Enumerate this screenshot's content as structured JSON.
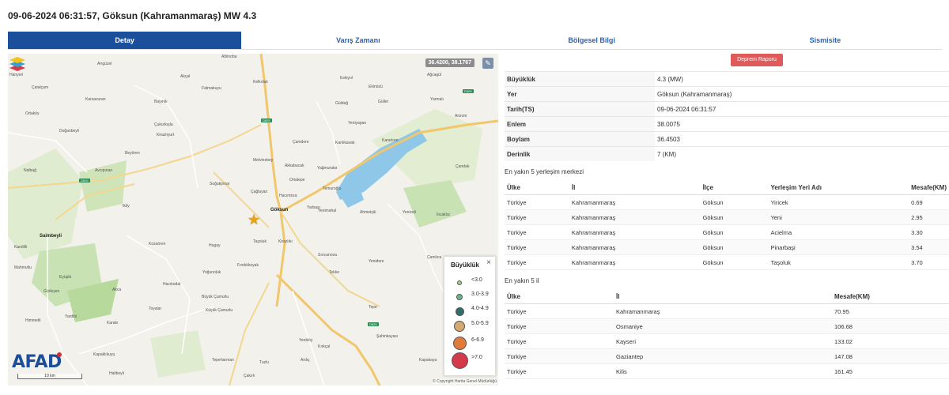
{
  "header": {
    "title": "09-06-2024 06:31:57, Göksun (Kahramanmaraş) MW 4.3"
  },
  "tabs": [
    {
      "label": "Detay",
      "active": true
    },
    {
      "label": "Varış Zamanı"
    },
    {
      "label": "Bölgesel Bilgi"
    },
    {
      "label": "Sismisite"
    }
  ],
  "map": {
    "coordinates": "36.4200, 38.1767",
    "brand": "AFAD",
    "scale_label": "10 km",
    "copyright": "© Copyright Harita Genel Müdürlüğü",
    "labels": {
      "hanyeri": "Hanyeri",
      "catalcam": "Çatalçam",
      "karsavuran": "Karsavuran",
      "ortakoy": "Ortaköy",
      "doganbeyli": "Doğanbeyli",
      "nalbag": "Nalbağ",
      "avciplinari": "Avcıpınarı",
      "ikily": "Ikily",
      "saimbeyli": "Saimbeyli",
      "kandilli": "Kandilli",
      "mahmutlu": "Mahmutlu",
      "eyupl": "Eyüplü",
      "gurleyen": "Gürleyen",
      "himmetli": "Himmetli",
      "yardibi": "Yardibi",
      "karaki": "Karakı",
      "kapaklikuyu": "Kapaklıkuyu",
      "halibeyli": "Halibeyli",
      "ariguzel": "Arıgüzel",
      "akcal": "Akçal",
      "fatmakuyu": "Fatmakuyu",
      "bayirlik": "Bayırlık",
      "cukurkisla": "Çukurkışla",
      "kiralyurt": "Kirazlıyurt",
      "beyoren": "Beyören",
      "sogukpinar": "Soğukpınar",
      "kozaoren": "Kozaören",
      "hugay": "Hugay",
      "yogunoluk": "Yoğunoluk",
      "hacikodal": "Hacıkodal",
      "akca": "Akca",
      "toyalar": "Toyalar",
      "buyukcamurlu": "Büyük Çamurlu",
      "kucukcamurlu": "Küçük Çamurlu",
      "albinoba": "Albinoba",
      "kelkoluk": "Kelkoluk",
      "tasoluk": "Taşoluk",
      "kirazlik": "Kirazlıkı",
      "findikkoyak": "Fındıkkoyak",
      "melvinebey": "Melvinebey",
      "cagalayan": "Çağlayan",
      "hacimirza": "Hacımirza",
      "goksun": "Göksun",
      "yarbasi": "Yarbaşı",
      "ortatepe": "Ortatepe",
      "temurogu": "Temuroğlu",
      "yenimahal": "Yenimahal",
      "ahmetcik": "Ahmetçik",
      "surucanva": "Sırıcanova",
      "camdere": "Çamdere",
      "kanlikavak": "Kanlıkavak",
      "akkabucak": "Akkabucak",
      "yagmuralar": "Yağmuralar",
      "yeniyapan": "Yeniyapan",
      "guldag": "Güldağ",
      "guller": "Güller",
      "eskiyol": "Eskiyol",
      "ekinozu": "Ekinözü",
      "karaoren": "Karaören",
      "yeniceli": "Yeniceli",
      "ilicakoz": "Ilıcaköz",
      "arizoni": "Arizoni",
      "camlica": "Çamlıca",
      "yenidere": "Yenidere",
      "tepe": "Tepe",
      "sahinkayasi": "Şahinkayası",
      "kapakaya": "Kapakaya",
      "agcagul": "Ağcagül",
      "yarmaly": "Yarmalı",
      "candak": "Çandak",
      "tekke": "Tekke",
      "yenikoy": "Yeniköy",
      "kirkcal": "Kırkçal",
      "ardic": "Ardıç",
      "tepeharman": "Tepeharman",
      "cakirli": "Çakırlı",
      "tuzlu": "Tuzlu"
    },
    "road_signs": {
      "d815": "D815",
      "d825a": "D825",
      "d825b": "D825",
      "d300": "D300"
    }
  },
  "legend": {
    "title": "Büyüklük",
    "items": [
      {
        "label": "<3.0",
        "color": "#9bd08a"
      },
      {
        "label": "3.0-3.9",
        "color": "#6cb48a"
      },
      {
        "label": "4.0-4.9",
        "color": "#2f6d6a"
      },
      {
        "label": "5.0-5.9",
        "color": "#d4a873"
      },
      {
        "label": "6-6.9",
        "color": "#e07b3a"
      },
      {
        "label": ">7.0",
        "color": "#d33a4a"
      }
    ]
  },
  "report_button": "Deprem Raporu",
  "details": [
    {
      "label": "Büyüklük",
      "value": "4.3 (MW)"
    },
    {
      "label": "Yer",
      "value": "Göksun (Kahramanmaraş)"
    },
    {
      "label": "Tarih(TS)",
      "value": "09-06-2024 06:31:57"
    },
    {
      "label": "Enlem",
      "value": "38.0075"
    },
    {
      "label": "Boylam",
      "value": "36.4503"
    },
    {
      "label": "Derinlik",
      "value": "7 (KM)"
    }
  ],
  "settlements": {
    "title": "En yakın 5 yerleşim merkezi",
    "headers": [
      "Ülke",
      "İl",
      "İlçe",
      "Yerleşim Yeri Adı",
      "Mesafe(KM)"
    ],
    "rows": [
      [
        "Türkiye",
        "Kahramanmaraş",
        "Göksun",
        "Yiricek",
        "0.69"
      ],
      [
        "Türkiye",
        "Kahramanmaraş",
        "Göksun",
        "Yeni",
        "2.95"
      ],
      [
        "Türkiye",
        "Kahramanmaraş",
        "Göksun",
        "Acielma",
        "3.30"
      ],
      [
        "Türkiye",
        "Kahramanmaraş",
        "Göksun",
        "Pinarbaşi",
        "3.54"
      ],
      [
        "Türkiye",
        "Kahramanmaraş",
        "Göksun",
        "Taşoluk",
        "3.70"
      ]
    ]
  },
  "provinces": {
    "title": "En yakın 5 il",
    "headers": [
      "Ülke",
      "İl",
      "Mesafe(KM)"
    ],
    "rows": [
      [
        "Türkiye",
        "Kahramanmaraş",
        "70.95"
      ],
      [
        "Türkiye",
        "Osmaniye",
        "106.68"
      ],
      [
        "Türkiye",
        "Kayseri",
        "133.02"
      ],
      [
        "Türkiye",
        "Gaziantep",
        "147.08"
      ],
      [
        "Türkiye",
        "Kilis",
        "161.45"
      ]
    ]
  }
}
